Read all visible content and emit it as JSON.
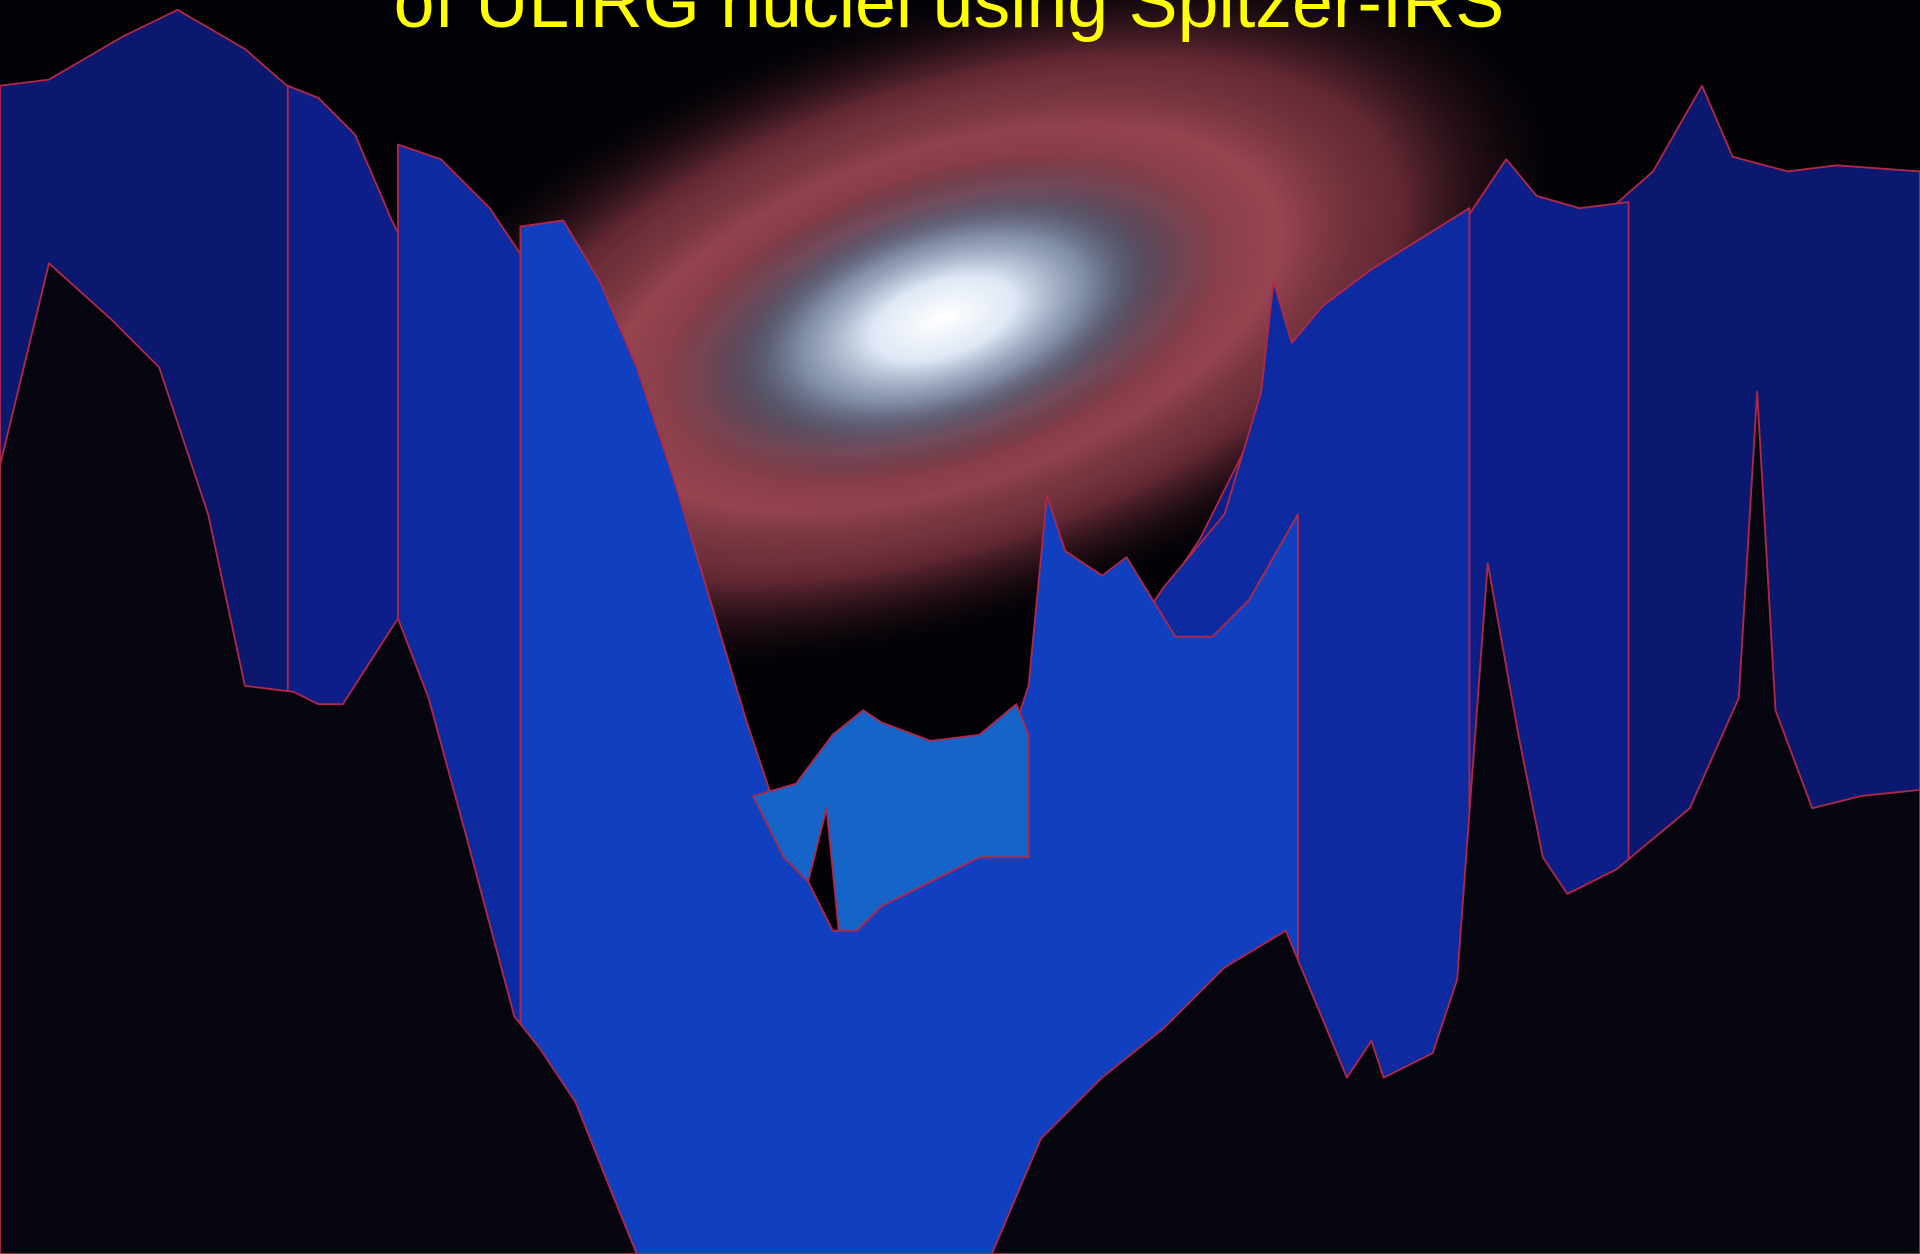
{
  "slide": {
    "title": "of ULIRG nuclei using Spitzer-IRS"
  }
}
